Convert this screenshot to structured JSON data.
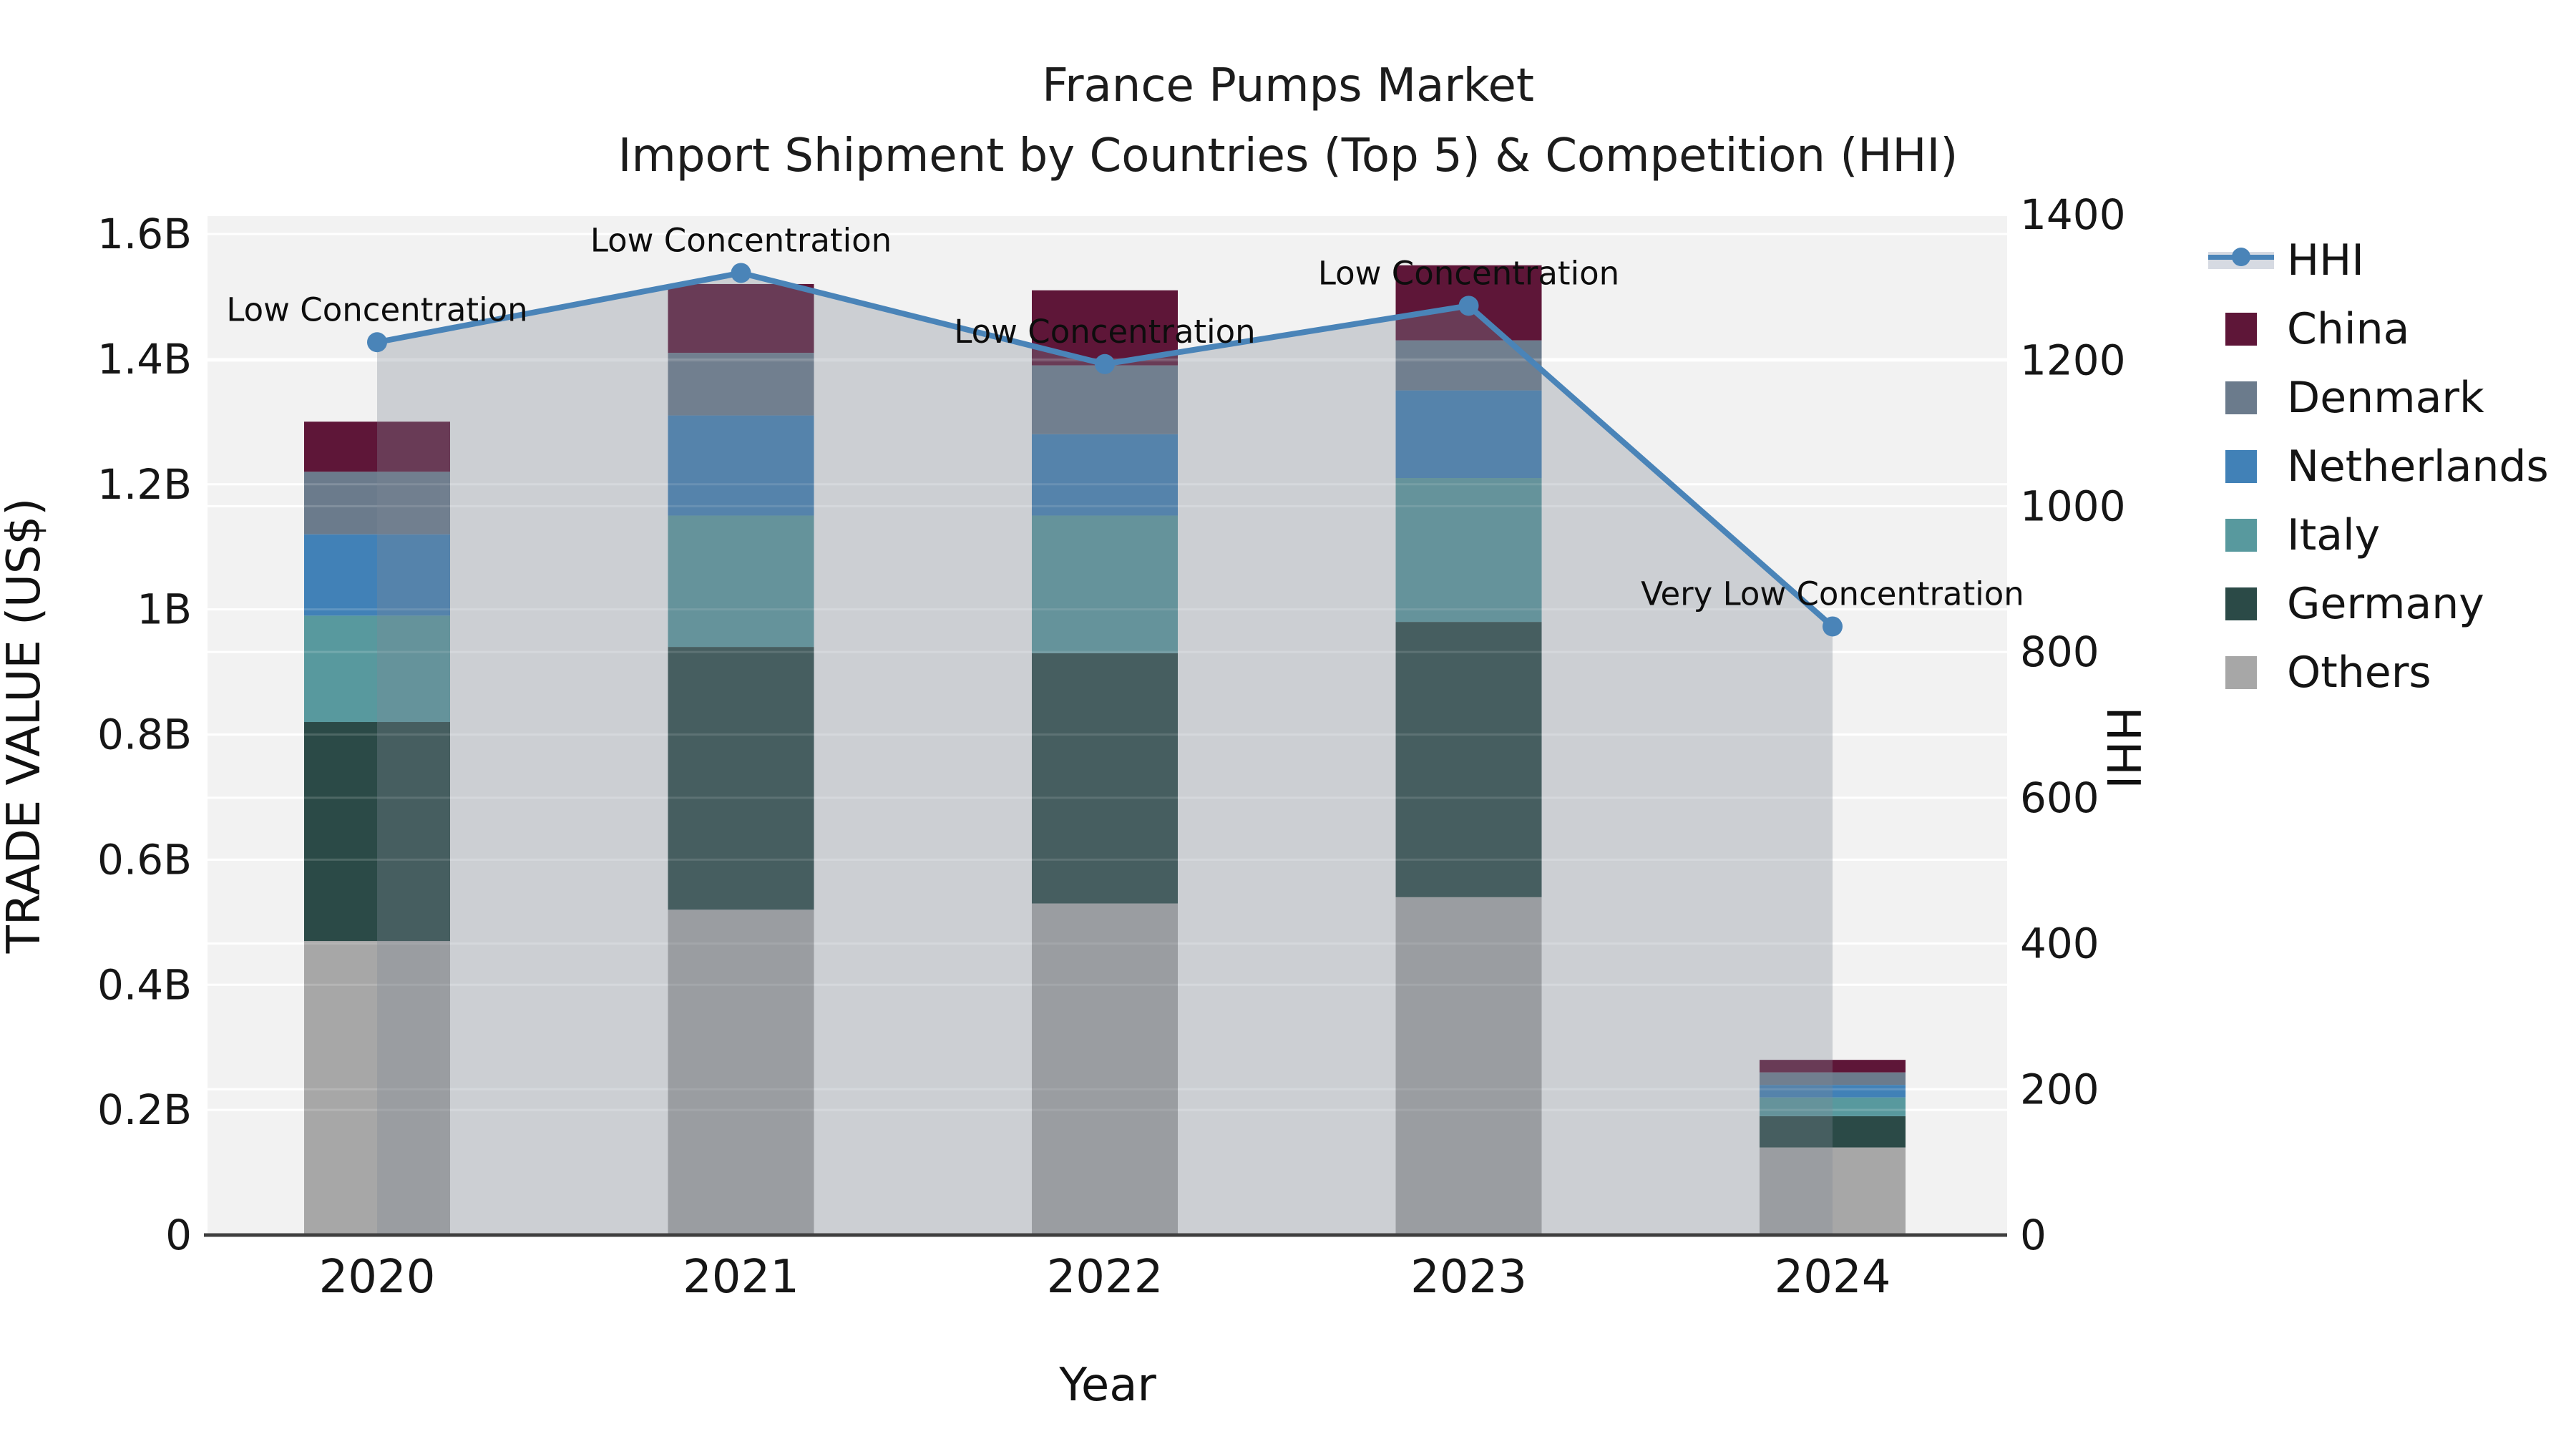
{
  "title": "France Pumps Market",
  "subtitle": "Import Shipment by Countries (Top 5) & Competition (HHI)",
  "axes": {
    "x": {
      "label": "Year"
    },
    "left": {
      "label": "TRADE VALUE (US$)",
      "tick_labels": [
        "0",
        "0.2B",
        "0.4B",
        "0.6B",
        "0.8B",
        "1B",
        "1.2B",
        "1.4B",
        "1.6B"
      ],
      "tick_values": [
        0,
        0.2,
        0.4,
        0.6,
        0.8,
        1.0,
        1.2,
        1.4,
        1.6
      ],
      "max": 1.6
    },
    "right": {
      "label": "HHI",
      "tick_labels": [
        "0",
        "200",
        "400",
        "600",
        "800",
        "1000",
        "1200",
        "1400"
      ],
      "tick_values": [
        0,
        200,
        400,
        600,
        800,
        1000,
        1200,
        1400
      ],
      "max": 1400
    }
  },
  "chart_data": {
    "type": "bar",
    "subtype": "stacked-bars-with-line-area-overlay",
    "categories": [
      "2020",
      "2021",
      "2022",
      "2023",
      "2024"
    ],
    "unit": "billion US$",
    "series": [
      {
        "name": "Others",
        "color": "#a7a7a7",
        "values": [
          0.47,
          0.52,
          0.53,
          0.54,
          0.14
        ]
      },
      {
        "name": "Germany",
        "color": "#2b4a47",
        "values": [
          0.35,
          0.42,
          0.4,
          0.44,
          0.05
        ]
      },
      {
        "name": "Italy",
        "color": "#58999e",
        "values": [
          0.17,
          0.21,
          0.22,
          0.23,
          0.03
        ]
      },
      {
        "name": "Netherlands",
        "color": "#4181b7",
        "values": [
          0.13,
          0.16,
          0.13,
          0.14,
          0.02
        ]
      },
      {
        "name": "Denmark",
        "color": "#6b7b8c",
        "values": [
          0.1,
          0.1,
          0.11,
          0.08,
          0.02
        ]
      },
      {
        "name": "China",
        "color": "#5e1638",
        "values": [
          0.08,
          0.11,
          0.12,
          0.12,
          0.02
        ]
      }
    ],
    "bar_totals": [
      1.3,
      1.52,
      1.51,
      1.55,
      0.28
    ],
    "line": {
      "name": "HHI",
      "values": [
        1225,
        1320,
        1195,
        1275,
        835
      ],
      "color": "#4a84b8",
      "area_fill": "rgba(127,138,150,0.33)"
    },
    "annotations": [
      "Low Concentration",
      "Low Concentration",
      "Low Concentration",
      "Low Concentration",
      "Very Low Concentration"
    ],
    "legend_order": [
      "HHI",
      "China",
      "Denmark",
      "Netherlands",
      "Italy",
      "Germany",
      "Others"
    ],
    "legend_position": "right",
    "grid": true,
    "plot_bg": "#f2f2f2",
    "grid_color": "#ffffff",
    "spine_color": "#3f3f3f",
    "text_color": "#141414"
  }
}
